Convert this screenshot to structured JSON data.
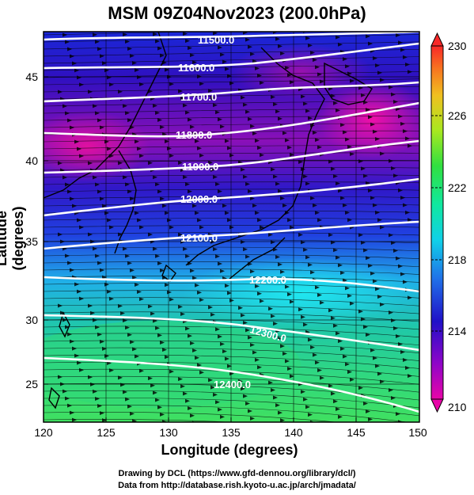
{
  "title": "MSM 09Z04Nov2023 (200.0hPa)",
  "axes": {
    "xlabel": "Longitude (degrees)",
    "ylabel": "Latitude  (degrees)",
    "xticks": [
      "120",
      "125",
      "130",
      "135",
      "140",
      "145",
      "150"
    ],
    "yticks": [
      "25",
      "30",
      "35",
      "40",
      "45"
    ],
    "xlim": [
      120,
      150
    ],
    "ylim": [
      22.5,
      47.5
    ]
  },
  "colorbar": {
    "ticks": [
      "230",
      "226",
      "222",
      "218",
      "214",
      "210"
    ],
    "range": [
      210,
      230
    ],
    "colors": [
      "#e8059e",
      "#8a05c8",
      "#2010c8",
      "#2060e8",
      "#10c8e8",
      "#10e8b0",
      "#20e060",
      "#7ee020",
      "#d0e810",
      "#f8c020",
      "#f87820",
      "#f83030"
    ]
  },
  "contours": [
    {
      "label": "11500.0"
    },
    {
      "label": "11600.0"
    },
    {
      "label": "11700.0"
    },
    {
      "label": "11800.0"
    },
    {
      "label": "11900.0"
    },
    {
      "label": "12000.0"
    },
    {
      "label": "12100.0"
    },
    {
      "label": "12200.0"
    },
    {
      "label": "12300.0"
    },
    {
      "label": "12400.0"
    }
  ],
  "credits": {
    "line1": "Drawing by DCL (https://www.gfd-dennou.org/library/dcl/)",
    "line2": "Data from http://database.rish.kyoto-u.ac.jp/arch/jmadata/"
  }
}
